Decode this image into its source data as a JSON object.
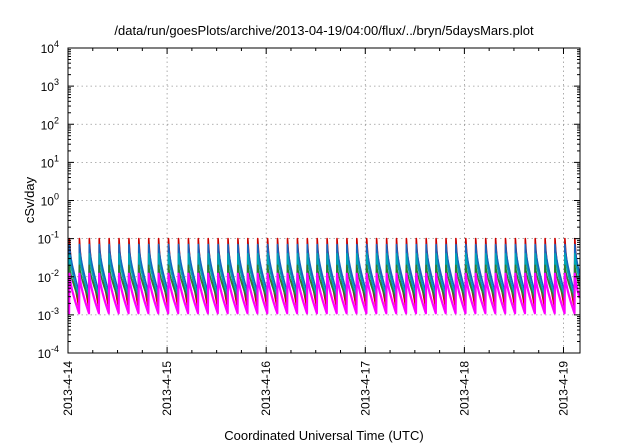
{
  "chart_data": {
    "type": "line",
    "title": "/data/run/goesPlots/archive/2013-04-19/04:00/flux/../bryn/5daysMars.plot",
    "xlabel": "Coordinated Universal Time (UTC)",
    "ylabel": "cSv/day",
    "yscale": "log",
    "ylim": [
      0.0001,
      10000
    ],
    "xlim": [
      "2013-04-14T00:00",
      "2013-04-19T04:00"
    ],
    "x_tick_labels": [
      "2013-4-14",
      "2013-4-15",
      "2013-4-16",
      "2013-4-17",
      "2013-4-18",
      "2013-4-19"
    ],
    "y_ticks": [
      {
        "base": "10",
        "exp": "-4"
      },
      {
        "base": "10",
        "exp": "-3"
      },
      {
        "base": "10",
        "exp": "-2"
      },
      {
        "base": "10",
        "exp": "-1"
      },
      {
        "base": "10",
        "exp": "0"
      },
      {
        "base": "10",
        "exp": "1"
      },
      {
        "base": "10",
        "exp": "2"
      },
      {
        "base": "10",
        "exp": "3"
      },
      {
        "base": "10",
        "exp": "4"
      }
    ],
    "grid": true,
    "legend": "none",
    "sawtooth_period_hours": 2.4,
    "series": [
      {
        "color": "#cc0000",
        "peak": 0.1,
        "trough": 0.0015
      },
      {
        "color": "#1565c0",
        "peak": 0.07,
        "trough": 0.004
      },
      {
        "color": "#00a5b5",
        "peak": 0.04,
        "trough": 0.003
      },
      {
        "color": "#2e7d32",
        "peak": 0.02,
        "trough": 0.0025
      },
      {
        "color": "#ff00ff",
        "peak": 0.012,
        "trough": 0.0011
      }
    ]
  }
}
